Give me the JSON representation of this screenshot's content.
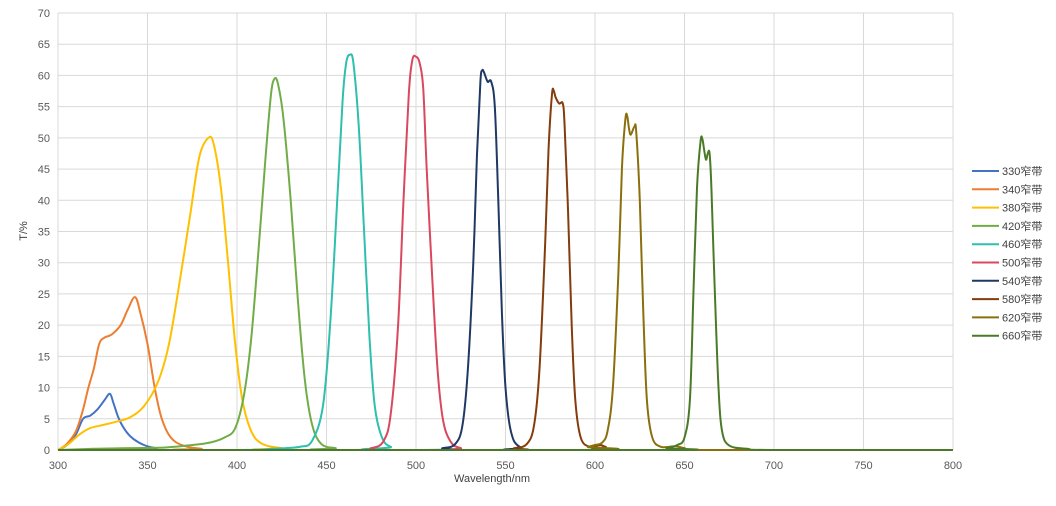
{
  "chart_data": {
    "type": "line",
    "title": "",
    "xlabel": "Wavelength/nm",
    "ylabel": "T/%",
    "xlim": [
      300,
      800
    ],
    "ylim": [
      0,
      70
    ],
    "xticks": [
      300,
      350,
      400,
      450,
      500,
      550,
      600,
      650,
      700,
      750,
      800
    ],
    "yticks": [
      0,
      5,
      10,
      15,
      20,
      25,
      30,
      35,
      40,
      45,
      50,
      55,
      60,
      65,
      70
    ],
    "grid": "both",
    "legend_position": "right",
    "series": [
      {
        "name": "330窄带",
        "color": "#4472c4",
        "points": [
          [
            300,
            0
          ],
          [
            305,
            0.8
          ],
          [
            310,
            2.5
          ],
          [
            314,
            5
          ],
          [
            318,
            5.5
          ],
          [
            322,
            6.5
          ],
          [
            326,
            8
          ],
          [
            329,
            9
          ],
          [
            331,
            7.5
          ],
          [
            334,
            5
          ],
          [
            338,
            3
          ],
          [
            342,
            1.8
          ],
          [
            348,
            0.8
          ],
          [
            355,
            0.3
          ],
          [
            370,
            0
          ],
          [
            800,
            0
          ]
        ]
      },
      {
        "name": "340窄带",
        "color": "#ed7d31",
        "points": [
          [
            300,
            0
          ],
          [
            305,
            1
          ],
          [
            310,
            3
          ],
          [
            314,
            6.5
          ],
          [
            317,
            10
          ],
          [
            320,
            13
          ],
          [
            323,
            17
          ],
          [
            326,
            18
          ],
          [
            330,
            18.5
          ],
          [
            335,
            20
          ],
          [
            339,
            22.5
          ],
          [
            343,
            24.5
          ],
          [
            346,
            22
          ],
          [
            350,
            17
          ],
          [
            354,
            10
          ],
          [
            358,
            5
          ],
          [
            363,
            2
          ],
          [
            370,
            0.7
          ],
          [
            380,
            0.2
          ],
          [
            400,
            0
          ],
          [
            800,
            0
          ]
        ]
      },
      {
        "name": "380窄带",
        "color": "#ffc000",
        "points": [
          [
            300,
            0
          ],
          [
            306,
            1
          ],
          [
            312,
            2.5
          ],
          [
            318,
            3.5
          ],
          [
            325,
            4
          ],
          [
            332,
            4.5
          ],
          [
            340,
            5.2
          ],
          [
            348,
            7
          ],
          [
            356,
            11
          ],
          [
            362,
            17
          ],
          [
            368,
            27
          ],
          [
            374,
            38
          ],
          [
            379,
            47
          ],
          [
            384,
            50
          ],
          [
            387,
            49
          ],
          [
            391,
            42
          ],
          [
            395,
            30
          ],
          [
            399,
            17
          ],
          [
            403,
            8
          ],
          [
            408,
            3
          ],
          [
            414,
            1
          ],
          [
            425,
            0.3
          ],
          [
            440,
            0
          ],
          [
            800,
            0
          ]
        ]
      },
      {
        "name": "420窄带",
        "color": "#70ad47",
        "points": [
          [
            300,
            0
          ],
          [
            320,
            0.2
          ],
          [
            340,
            0.3
          ],
          [
            360,
            0.4
          ],
          [
            375,
            0.8
          ],
          [
            385,
            1.2
          ],
          [
            393,
            2
          ],
          [
            399,
            3.5
          ],
          [
            404,
            9
          ],
          [
            408,
            18
          ],
          [
            412,
            32
          ],
          [
            416,
            47
          ],
          [
            419,
            57
          ],
          [
            421,
            59.5
          ],
          [
            423,
            58.5
          ],
          [
            426,
            53
          ],
          [
            430,
            40
          ],
          [
            434,
            24
          ],
          [
            438,
            11
          ],
          [
            442,
            4
          ],
          [
            447,
            1
          ],
          [
            455,
            0.3
          ],
          [
            470,
            0
          ],
          [
            800,
            0
          ]
        ]
      },
      {
        "name": "460窄带",
        "color": "#2ebfae",
        "points": [
          [
            300,
            0
          ],
          [
            400,
            0
          ],
          [
            420,
            0.2
          ],
          [
            435,
            0.5
          ],
          [
            442,
            1.5
          ],
          [
            448,
            7
          ],
          [
            452,
            20
          ],
          [
            456,
            40
          ],
          [
            459,
            56
          ],
          [
            461,
            62
          ],
          [
            463,
            63.3
          ],
          [
            465,
            62
          ],
          [
            468,
            52
          ],
          [
            471,
            35
          ],
          [
            474,
            18
          ],
          [
            477,
            7
          ],
          [
            481,
            2
          ],
          [
            486,
            0.5
          ],
          [
            495,
            0
          ],
          [
            800,
            0
          ]
        ]
      },
      {
        "name": "500窄带",
        "color": "#d9485f",
        "points": [
          [
            300,
            0
          ],
          [
            460,
            0
          ],
          [
            475,
            0.3
          ],
          [
            482,
            1.5
          ],
          [
            486,
            6
          ],
          [
            490,
            20
          ],
          [
            493,
            40
          ],
          [
            496,
            57
          ],
          [
            498,
            62.5
          ],
          [
            500,
            63
          ],
          [
            502,
            62
          ],
          [
            504,
            58
          ],
          [
            506,
            45
          ],
          [
            509,
            28
          ],
          [
            512,
            13
          ],
          [
            515,
            5
          ],
          [
            519,
            1.5
          ],
          [
            525,
            0.3
          ],
          [
            540,
            0
          ],
          [
            800,
            0
          ]
        ]
      },
      {
        "name": "540窄带",
        "color": "#1f3864",
        "points": [
          [
            300,
            0
          ],
          [
            500,
            0
          ],
          [
            515,
            0.3
          ],
          [
            522,
            1
          ],
          [
            526,
            4
          ],
          [
            529,
            13
          ],
          [
            532,
            30
          ],
          [
            534,
            47
          ],
          [
            536,
            59
          ],
          [
            537,
            60.8
          ],
          [
            538,
            60.5
          ],
          [
            540,
            59
          ],
          [
            542,
            59
          ],
          [
            544,
            55
          ],
          [
            546,
            40
          ],
          [
            548,
            22
          ],
          [
            550,
            10
          ],
          [
            553,
            3
          ],
          [
            558,
            0.5
          ],
          [
            570,
            0
          ],
          [
            800,
            0
          ]
        ]
      },
      {
        "name": "580窄带",
        "color": "#843c0c",
        "points": [
          [
            300,
            0
          ],
          [
            540,
            0
          ],
          [
            555,
            0.3
          ],
          [
            562,
            1
          ],
          [
            566,
            4
          ],
          [
            569,
            13
          ],
          [
            572,
            32
          ],
          [
            574,
            48
          ],
          [
            576,
            57
          ],
          [
            577,
            57.5
          ],
          [
            578,
            56.5
          ],
          [
            580,
            55.5
          ],
          [
            582,
            55.5
          ],
          [
            583,
            52
          ],
          [
            585,
            38
          ],
          [
            587,
            20
          ],
          [
            589,
            8
          ],
          [
            592,
            2
          ],
          [
            597,
            0.5
          ],
          [
            603,
            0.8
          ],
          [
            606,
            0.5
          ],
          [
            615,
            0
          ],
          [
            800,
            0
          ]
        ]
      },
      {
        "name": "620窄带",
        "color": "#8b6f0f",
        "points": [
          [
            300,
            0
          ],
          [
            590,
            0
          ],
          [
            596,
            0.5
          ],
          [
            600,
            0.8
          ],
          [
            604,
            1.2
          ],
          [
            607,
            3
          ],
          [
            610,
            10
          ],
          [
            613,
            28
          ],
          [
            615,
            45
          ],
          [
            617,
            53
          ],
          [
            618,
            53.5
          ],
          [
            619,
            51.5
          ],
          [
            620,
            50.5
          ],
          [
            622,
            51.8
          ],
          [
            623,
            51
          ],
          [
            625,
            40
          ],
          [
            627,
            22
          ],
          [
            629,
            8
          ],
          [
            632,
            2
          ],
          [
            637,
            0.5
          ],
          [
            645,
            0.6
          ],
          [
            650,
            0.3
          ],
          [
            660,
            0
          ],
          [
            800,
            0
          ]
        ]
      },
      {
        "name": "660窄带",
        "color": "#4a7a28",
        "points": [
          [
            300,
            0
          ],
          [
            630,
            0
          ],
          [
            640,
            0.3
          ],
          [
            646,
            0.8
          ],
          [
            650,
            2
          ],
          [
            653,
            8
          ],
          [
            655,
            25
          ],
          [
            657,
            42
          ],
          [
            659,
            49.5
          ],
          [
            660,
            49.8
          ],
          [
            661,
            48
          ],
          [
            662,
            46.5
          ],
          [
            663,
            47.5
          ],
          [
            664,
            47.5
          ],
          [
            665,
            42
          ],
          [
            667,
            25
          ],
          [
            669,
            10
          ],
          [
            671,
            3
          ],
          [
            675,
            0.7
          ],
          [
            685,
            0.2
          ],
          [
            700,
            0
          ],
          [
            800,
            0
          ]
        ]
      }
    ]
  }
}
